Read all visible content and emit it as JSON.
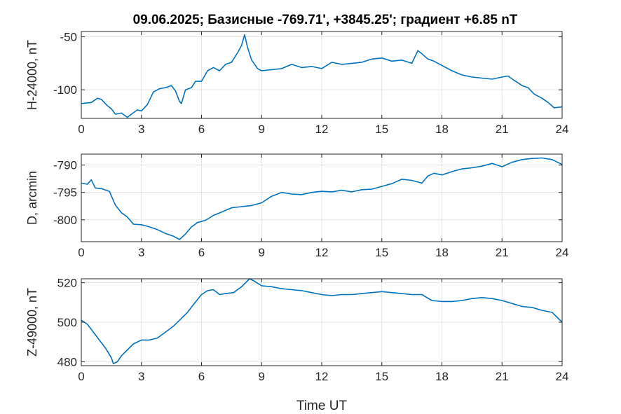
{
  "figure": {
    "title": "09.06.2025;  Базисные  -769.71', +3845.25'; градиент +6.85 nT",
    "xlabel": "Time UT"
  },
  "chart_data": [
    {
      "type": "line",
      "ylabel": "H-24000, nT",
      "xlim": [
        0,
        24
      ],
      "ylim": [
        -127,
        -45
      ],
      "xticks": [
        0,
        3,
        6,
        9,
        12,
        15,
        18,
        21,
        24
      ],
      "yticks": [
        -100,
        -50
      ],
      "grid": true,
      "color": "#0072BD",
      "x": [
        0,
        0.5,
        0.8,
        1.0,
        1.3,
        1.5,
        1.7,
        2.0,
        2.3,
        2.5,
        2.8,
        3.0,
        3.3,
        3.6,
        3.9,
        4.2,
        4.5,
        4.7,
        4.9,
        5.0,
        5.2,
        5.5,
        5.7,
        6.0,
        6.3,
        6.6,
        6.9,
        7.2,
        7.5,
        7.8,
        8.0,
        8.15,
        8.3,
        8.5,
        8.8,
        9.0,
        9.5,
        10.0,
        10.5,
        11.0,
        11.5,
        12.0,
        12.5,
        13.0,
        13.5,
        14.0,
        14.5,
        15.0,
        15.5,
        16.0,
        16.5,
        16.8,
        17.0,
        17.3,
        17.6,
        18.0,
        18.5,
        19.0,
        19.5,
        20.0,
        20.5,
        21.0,
        21.3,
        21.6,
        22.0,
        22.3,
        22.6,
        23.0,
        23.3,
        23.6,
        24.0
      ],
      "y": [
        -113,
        -112,
        -108,
        -109,
        -115,
        -118,
        -123,
        -122,
        -126,
        -123,
        -119,
        -120,
        -114,
        -102,
        -99,
        -98,
        -96,
        -101,
        -111,
        -113,
        -100,
        -98,
        -92,
        -92,
        -82,
        -79,
        -82,
        -76,
        -74,
        -65,
        -58,
        -48,
        -60,
        -72,
        -80,
        -82,
        -81,
        -80,
        -76,
        -79,
        -78,
        -80,
        -74,
        -76,
        -75,
        -74,
        -71,
        -70,
        -73,
        -72,
        -75,
        -63,
        -66,
        -71,
        -73,
        -77,
        -82,
        -86,
        -88,
        -89,
        -90,
        -88,
        -87,
        -91,
        -96,
        -98,
        -104,
        -108,
        -112,
        -117,
        -116
      ]
    },
    {
      "type": "line",
      "ylabel": "D, arcmin",
      "xlim": [
        0,
        24
      ],
      "ylim": [
        -804,
        -788
      ],
      "xticks": [
        0,
        3,
        6,
        9,
        12,
        15,
        18,
        21,
        24
      ],
      "yticks": [
        -800,
        -795,
        -790
      ],
      "grid": true,
      "color": "#0072BD",
      "x": [
        0,
        0.3,
        0.5,
        0.7,
        1.0,
        1.4,
        1.7,
        2.0,
        2.3,
        2.6,
        3.0,
        3.4,
        3.8,
        4.2,
        4.6,
        4.9,
        5.2,
        5.5,
        5.8,
        6.2,
        6.6,
        7.0,
        7.5,
        8.0,
        8.5,
        9.0,
        9.5,
        10.0,
        10.5,
        11.0,
        11.5,
        12.0,
        12.5,
        13.0,
        13.5,
        14.0,
        14.5,
        15.0,
        15.5,
        16.0,
        16.5,
        17.0,
        17.3,
        17.6,
        18.0,
        18.5,
        19.0,
        19.5,
        20.0,
        20.5,
        21.0,
        21.5,
        22.0,
        22.5,
        23.0,
        23.5,
        24.0
      ],
      "y": [
        -793.3,
        -793.5,
        -792.7,
        -794.2,
        -794.3,
        -794.8,
        -797.3,
        -798.7,
        -799.5,
        -800.8,
        -800.9,
        -801.3,
        -801.8,
        -802.5,
        -803.0,
        -803.6,
        -802.6,
        -801.3,
        -800.5,
        -800.1,
        -799.2,
        -798.6,
        -797.8,
        -797.6,
        -797.4,
        -796.9,
        -795.7,
        -795.0,
        -795.3,
        -795.4,
        -795.0,
        -794.8,
        -794.9,
        -794.6,
        -794.9,
        -794.5,
        -794.4,
        -793.9,
        -793.4,
        -792.6,
        -792.8,
        -793.3,
        -792.0,
        -791.5,
        -791.8,
        -791.2,
        -790.7,
        -790.5,
        -790.2,
        -789.7,
        -790.3,
        -789.5,
        -789.0,
        -788.8,
        -788.7,
        -789.0,
        -789.9
      ]
    },
    {
      "type": "line",
      "ylabel": "Z-49000, nT",
      "xlim": [
        0,
        24
      ],
      "ylim": [
        478,
        522
      ],
      "xticks": [
        0,
        3,
        6,
        9,
        12,
        15,
        18,
        21,
        24
      ],
      "yticks": [
        480,
        500,
        520
      ],
      "grid": true,
      "color": "#0072BD",
      "x": [
        0,
        0.3,
        0.6,
        0.9,
        1.2,
        1.5,
        1.6,
        1.8,
        2.0,
        2.3,
        2.6,
        3.0,
        3.4,
        3.8,
        4.2,
        4.6,
        5.0,
        5.3,
        5.6,
        6.0,
        6.3,
        6.6,
        6.9,
        7.2,
        7.6,
        8.0,
        8.4,
        8.6,
        9.0,
        9.5,
        10.0,
        10.5,
        11.0,
        11.5,
        12.0,
        12.5,
        13.0,
        13.5,
        14.0,
        14.5,
        15.0,
        15.5,
        16.0,
        16.5,
        17.0,
        17.5,
        18.0,
        18.5,
        19.0,
        19.5,
        20.0,
        20.5,
        21.0,
        21.5,
        22.0,
        22.5,
        23.0,
        23.5,
        24.0
      ],
      "y": [
        501,
        499,
        495,
        491,
        487,
        482,
        479,
        480,
        483,
        486,
        489,
        491,
        491,
        492,
        495,
        498,
        502,
        505,
        509,
        514,
        516,
        516.5,
        514,
        514.5,
        515,
        518,
        522,
        521,
        518.5,
        518,
        517,
        516.5,
        516,
        515,
        514,
        513.5,
        514,
        514,
        514.5,
        515,
        515.5,
        515,
        514.5,
        514,
        514,
        511,
        510.5,
        510.5,
        511,
        512,
        512.5,
        512,
        511,
        509.5,
        508,
        507.5,
        506,
        505,
        500
      ]
    }
  ]
}
